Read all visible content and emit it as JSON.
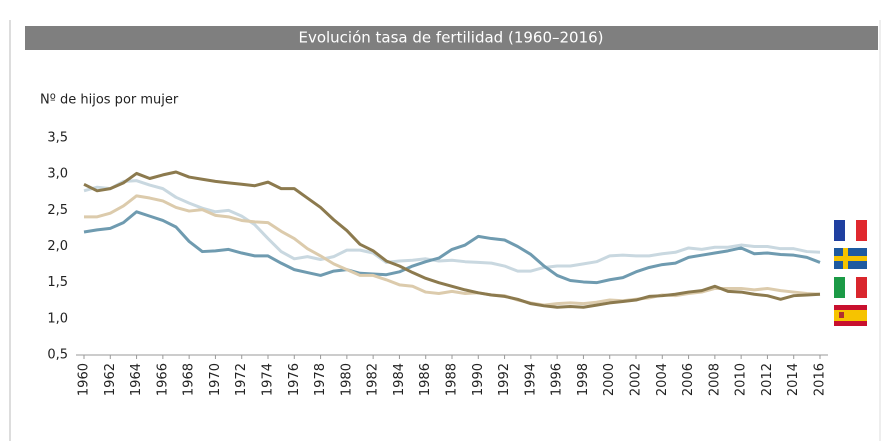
{
  "chart_data": {
    "type": "line",
    "title": "Evolución tasa de fertilidad (1960–2016)",
    "y_label": "Nº de hijos por mujer",
    "x": [
      1960,
      1961,
      1962,
      1963,
      1964,
      1965,
      1966,
      1967,
      1968,
      1969,
      1970,
      1971,
      1972,
      1973,
      1974,
      1975,
      1976,
      1977,
      1978,
      1979,
      1980,
      1981,
      1982,
      1983,
      1984,
      1985,
      1986,
      1987,
      1988,
      1989,
      1990,
      1991,
      1992,
      1993,
      1994,
      1995,
      1996,
      1997,
      1998,
      1999,
      2000,
      2001,
      2002,
      2003,
      2004,
      2005,
      2006,
      2007,
      2008,
      2009,
      2010,
      2011,
      2012,
      2013,
      2014,
      2015,
      2016
    ],
    "series": [
      {
        "color": "#c9d8e0",
        "values": [
          2.77,
          2.82,
          2.8,
          2.9,
          2.91,
          2.85,
          2.8,
          2.68,
          2.6,
          2.53,
          2.48,
          2.5,
          2.42,
          2.3,
          2.11,
          1.93,
          1.83,
          1.86,
          1.82,
          1.86,
          1.95,
          1.95,
          1.91,
          1.78,
          1.8,
          1.81,
          1.83,
          1.8,
          1.81,
          1.79,
          1.78,
          1.77,
          1.73,
          1.66,
          1.66,
          1.71,
          1.73,
          1.73,
          1.76,
          1.79,
          1.87,
          1.88,
          1.87,
          1.87,
          1.9,
          1.92,
          1.98,
          1.96,
          1.99,
          1.99,
          2.02,
          2.0,
          2.0,
          1.97,
          1.97,
          1.93,
          1.92
        ]
      },
      {
        "color": "#6f9bb0",
        "values": [
          2.2,
          2.23,
          2.25,
          2.33,
          2.48,
          2.42,
          2.36,
          2.27,
          2.07,
          1.93,
          1.94,
          1.96,
          1.91,
          1.87,
          1.87,
          1.77,
          1.68,
          1.64,
          1.6,
          1.66,
          1.68,
          1.63,
          1.62,
          1.61,
          1.65,
          1.73,
          1.79,
          1.84,
          1.96,
          2.02,
          2.14,
          2.11,
          2.09,
          2.0,
          1.89,
          1.73,
          1.6,
          1.53,
          1.51,
          1.5,
          1.54,
          1.57,
          1.65,
          1.71,
          1.75,
          1.77,
          1.85,
          1.88,
          1.91,
          1.94,
          1.98,
          1.9,
          1.91,
          1.89,
          1.88,
          1.85,
          1.78
        ]
      },
      {
        "color": "#dccbac",
        "values": [
          2.41,
          2.41,
          2.46,
          2.56,
          2.7,
          2.67,
          2.63,
          2.54,
          2.49,
          2.51,
          2.43,
          2.41,
          2.36,
          2.34,
          2.33,
          2.21,
          2.11,
          1.97,
          1.87,
          1.76,
          1.68,
          1.6,
          1.6,
          1.54,
          1.47,
          1.45,
          1.37,
          1.35,
          1.38,
          1.35,
          1.36,
          1.33,
          1.32,
          1.26,
          1.22,
          1.19,
          1.21,
          1.22,
          1.21,
          1.23,
          1.26,
          1.25,
          1.27,
          1.29,
          1.33,
          1.32,
          1.35,
          1.37,
          1.42,
          1.42,
          1.42,
          1.4,
          1.42,
          1.39,
          1.37,
          1.35,
          1.34
        ]
      },
      {
        "color": "#8c7a4e",
        "values": [
          2.86,
          2.77,
          2.8,
          2.88,
          3.01,
          2.94,
          2.99,
          3.03,
          2.96,
          2.93,
          2.9,
          2.88,
          2.86,
          2.84,
          2.89,
          2.8,
          2.8,
          2.67,
          2.54,
          2.37,
          2.22,
          2.03,
          1.94,
          1.8,
          1.73,
          1.64,
          1.56,
          1.5,
          1.45,
          1.4,
          1.36,
          1.33,
          1.31,
          1.27,
          1.21,
          1.18,
          1.16,
          1.17,
          1.16,
          1.19,
          1.22,
          1.24,
          1.26,
          1.31,
          1.32,
          1.34,
          1.37,
          1.39,
          1.45,
          1.38,
          1.37,
          1.34,
          1.32,
          1.27,
          1.32,
          1.33,
          1.34
        ]
      }
    ],
    "xlim": [
      1960,
      2016
    ],
    "xticks": [
      1960,
      1962,
      1964,
      1966,
      1968,
      1970,
      1972,
      1974,
      1976,
      1978,
      1980,
      1982,
      1984,
      1986,
      1988,
      1990,
      1992,
      1994,
      1996,
      1998,
      2000,
      2002,
      2004,
      2006,
      2008,
      2010,
      2012,
      2014,
      2016
    ],
    "ylim": [
      0.5,
      3.5
    ],
    "yticks": [
      {
        "value": 0.5,
        "label": "0,5"
      },
      {
        "value": 1.0,
        "label": "1,0"
      },
      {
        "value": 1.5,
        "label": "1,5"
      },
      {
        "value": 2.0,
        "label": "2,0"
      },
      {
        "value": 2.5,
        "label": "2,5"
      },
      {
        "value": 3.0,
        "label": "3,0"
      },
      {
        "value": 3.5,
        "label": "3,5"
      }
    ],
    "grid": false
  }
}
